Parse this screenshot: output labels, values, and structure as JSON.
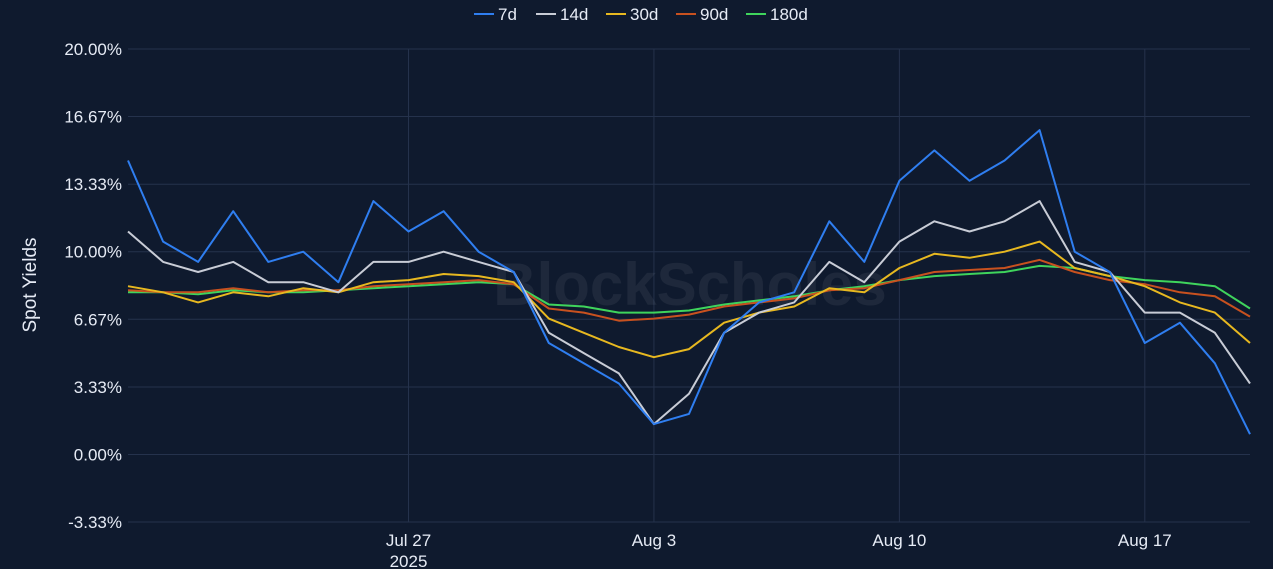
{
  "chart_data": {
    "type": "line",
    "ylabel": "Spot Yields",
    "watermark": "BlockScholes",
    "ylim": [
      -3.33,
      20.0
    ],
    "y_ticks": [
      "20.00%",
      "16.67%",
      "13.33%",
      "10.00%",
      "6.67%",
      "3.33%",
      "0.00%",
      "-3.33%"
    ],
    "y_tick_values": [
      20.0,
      16.67,
      13.33,
      10.0,
      6.67,
      3.33,
      0.0,
      -3.33
    ],
    "x_range": [
      "2025-07-19",
      "2025-08-20"
    ],
    "x_ticks": [
      {
        "date": "2025-07-27",
        "label": "Jul 27",
        "sublabel": "2025"
      },
      {
        "date": "2025-08-03",
        "label": "Aug 3",
        "sublabel": ""
      },
      {
        "date": "2025-08-10",
        "label": "Aug 10",
        "sublabel": ""
      },
      {
        "date": "2025-08-17",
        "label": "Aug 17",
        "sublabel": ""
      }
    ],
    "legend_position": "top-center",
    "grid": true,
    "x": [
      "2025-07-19",
      "2025-07-20",
      "2025-07-21",
      "2025-07-22",
      "2025-07-23",
      "2025-07-24",
      "2025-07-25",
      "2025-07-26",
      "2025-07-27",
      "2025-07-28",
      "2025-07-29",
      "2025-07-30",
      "2025-07-31",
      "2025-08-01",
      "2025-08-02",
      "2025-08-03",
      "2025-08-04",
      "2025-08-05",
      "2025-08-06",
      "2025-08-07",
      "2025-08-08",
      "2025-08-09",
      "2025-08-10",
      "2025-08-11",
      "2025-08-12",
      "2025-08-13",
      "2025-08-14",
      "2025-08-15",
      "2025-08-16",
      "2025-08-17",
      "2025-08-18",
      "2025-08-19",
      "2025-08-20"
    ],
    "series": [
      {
        "name": "7d",
        "color": "#2f7ef0",
        "values": [
          14.5,
          10.5,
          9.5,
          12.0,
          9.5,
          10.0,
          8.5,
          12.5,
          11.0,
          12.0,
          10.0,
          9.0,
          5.5,
          4.5,
          3.5,
          1.5,
          2.0,
          6.0,
          7.5,
          8.0,
          11.5,
          9.5,
          13.5,
          15.0,
          13.5,
          14.5,
          16.0,
          10.0,
          9.0,
          5.5,
          6.5,
          4.5,
          1.0
        ]
      },
      {
        "name": "14d",
        "color": "#c8ccd6",
        "values": [
          11.0,
          9.5,
          9.0,
          9.5,
          8.5,
          8.5,
          8.0,
          9.5,
          9.5,
          10.0,
          9.5,
          9.0,
          6.0,
          5.0,
          4.0,
          1.5,
          3.0,
          6.0,
          7.0,
          7.5,
          9.5,
          8.5,
          10.5,
          11.5,
          11.0,
          11.5,
          12.5,
          9.5,
          9.0,
          7.0,
          7.0,
          6.0,
          3.5
        ]
      },
      {
        "name": "30d",
        "color": "#e7b820",
        "values": [
          8.3,
          8.0,
          7.5,
          8.0,
          7.8,
          8.2,
          8.0,
          8.5,
          8.6,
          8.9,
          8.8,
          8.5,
          6.7,
          6.0,
          5.3,
          4.8,
          5.2,
          6.5,
          7.0,
          7.3,
          8.2,
          8.0,
          9.2,
          9.9,
          9.7,
          10.0,
          10.5,
          9.2,
          8.8,
          8.3,
          7.5,
          7.0,
          5.5
        ]
      },
      {
        "name": "90d",
        "color": "#c8511f",
        "values": [
          8.1,
          8.0,
          8.0,
          8.2,
          8.0,
          8.1,
          8.1,
          8.3,
          8.4,
          8.5,
          8.6,
          8.4,
          7.2,
          7.0,
          6.6,
          6.7,
          6.9,
          7.3,
          7.5,
          7.7,
          8.1,
          8.2,
          8.6,
          9.0,
          9.1,
          9.2,
          9.6,
          9.0,
          8.6,
          8.4,
          8.0,
          7.8,
          6.8
        ]
      },
      {
        "name": "180d",
        "color": "#3fd45c",
        "values": [
          8.0,
          8.0,
          7.9,
          8.1,
          8.0,
          8.0,
          8.1,
          8.2,
          8.3,
          8.4,
          8.5,
          8.4,
          7.4,
          7.3,
          7.0,
          7.0,
          7.1,
          7.4,
          7.6,
          7.8,
          8.1,
          8.3,
          8.6,
          8.8,
          8.9,
          9.0,
          9.3,
          9.2,
          8.8,
          8.6,
          8.5,
          8.3,
          7.2
        ]
      }
    ]
  }
}
